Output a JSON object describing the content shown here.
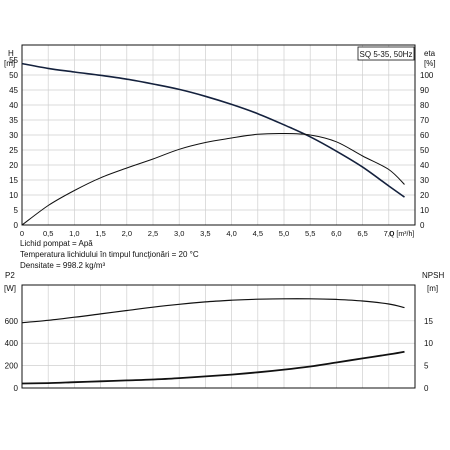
{
  "chart_data": [
    {
      "type": "line",
      "title": "SQ 5-35, 50Hz",
      "xlabel": "Q [m³/h]",
      "xlim": [
        0,
        7.5
      ],
      "x_ticks": [
        "0",
        "0,5",
        "1,0",
        "1,5",
        "2,0",
        "2,5",
        "3,0",
        "3,5",
        "4,0",
        "4,5",
        "5,0",
        "5,5",
        "6,0",
        "6,5",
        "7,0"
      ],
      "left_axis": {
        "label": "H",
        "unit": "[m]",
        "ylim": [
          0,
          60
        ],
        "ticks": [
          "0",
          "5",
          "10",
          "15",
          "20",
          "25",
          "30",
          "35",
          "40",
          "45",
          "50",
          "55"
        ]
      },
      "right_axis": {
        "label": "eta",
        "unit": "[%]",
        "ylim": [
          0,
          120
        ],
        "ticks": [
          "0",
          "10",
          "20",
          "30",
          "40",
          "50",
          "60",
          "70",
          "80",
          "90",
          "100"
        ]
      },
      "grid": true,
      "series": [
        {
          "axis": "left",
          "x": [
            0,
            0.5,
            1.0,
            1.5,
            2.0,
            2.5,
            3.0,
            3.5,
            4.0,
            4.5,
            5.0,
            5.5,
            6.0,
            6.5,
            7.0,
            7.3
          ],
          "values": [
            53.8,
            52.2,
            51.0,
            49.9,
            48.6,
            47.0,
            45.2,
            42.9,
            40.2,
            37.1,
            33.4,
            29.4,
            24.6,
            19.3,
            13.0,
            9.3
          ]
        },
        {
          "axis": "right",
          "x": [
            0,
            0.5,
            1.0,
            1.5,
            2.0,
            2.5,
            3.0,
            3.5,
            4.0,
            4.5,
            5.0,
            5.5,
            6.0,
            6.5,
            7.0,
            7.3
          ],
          "values": [
            0,
            13,
            23,
            31.5,
            38,
            44,
            50.5,
            55,
            58,
            60.5,
            61,
            60,
            55.5,
            46,
            37,
            27
          ]
        }
      ],
      "notes": [
        "Lichid pompat = Apă",
        "Temperatura lichidului în timpul funcţionări = 20 °C",
        "Densitate = 998.2 kg/m³"
      ]
    },
    {
      "type": "line",
      "xlim": [
        0,
        7.5
      ],
      "left_axis": {
        "label": "P2",
        "unit": "[W]",
        "ylim": [
          0,
          920
        ],
        "ticks": [
          "0",
          "200",
          "400",
          "600"
        ]
      },
      "right_axis": {
        "label": "NPSH",
        "unit": "[m]",
        "ylim": [
          0,
          23
        ],
        "ticks": [
          "0",
          "5",
          "10",
          "15"
        ]
      },
      "grid": true,
      "series": [
        {
          "axis": "left",
          "x": [
            0,
            0.5,
            1.0,
            1.5,
            2.0,
            2.5,
            3.0,
            3.5,
            4.0,
            4.5,
            5.0,
            5.5,
            6.0,
            6.5,
            7.0,
            7.3
          ],
          "values": [
            583,
            605,
            632,
            662,
            692,
            722,
            748,
            769,
            784,
            793,
            797,
            797,
            791,
            777,
            750,
            718
          ]
        },
        {
          "axis": "right",
          "x": [
            0,
            0.5,
            1.0,
            1.5,
            2.0,
            2.5,
            3.0,
            3.5,
            4.0,
            4.5,
            5.0,
            5.5,
            6.0,
            6.5,
            7.0,
            7.3
          ],
          "values": [
            1.0,
            1.1,
            1.3,
            1.5,
            1.7,
            1.9,
            2.2,
            2.6,
            3.0,
            3.5,
            4.1,
            4.8,
            5.7,
            6.6,
            7.5,
            8.1
          ]
        }
      ]
    }
  ]
}
